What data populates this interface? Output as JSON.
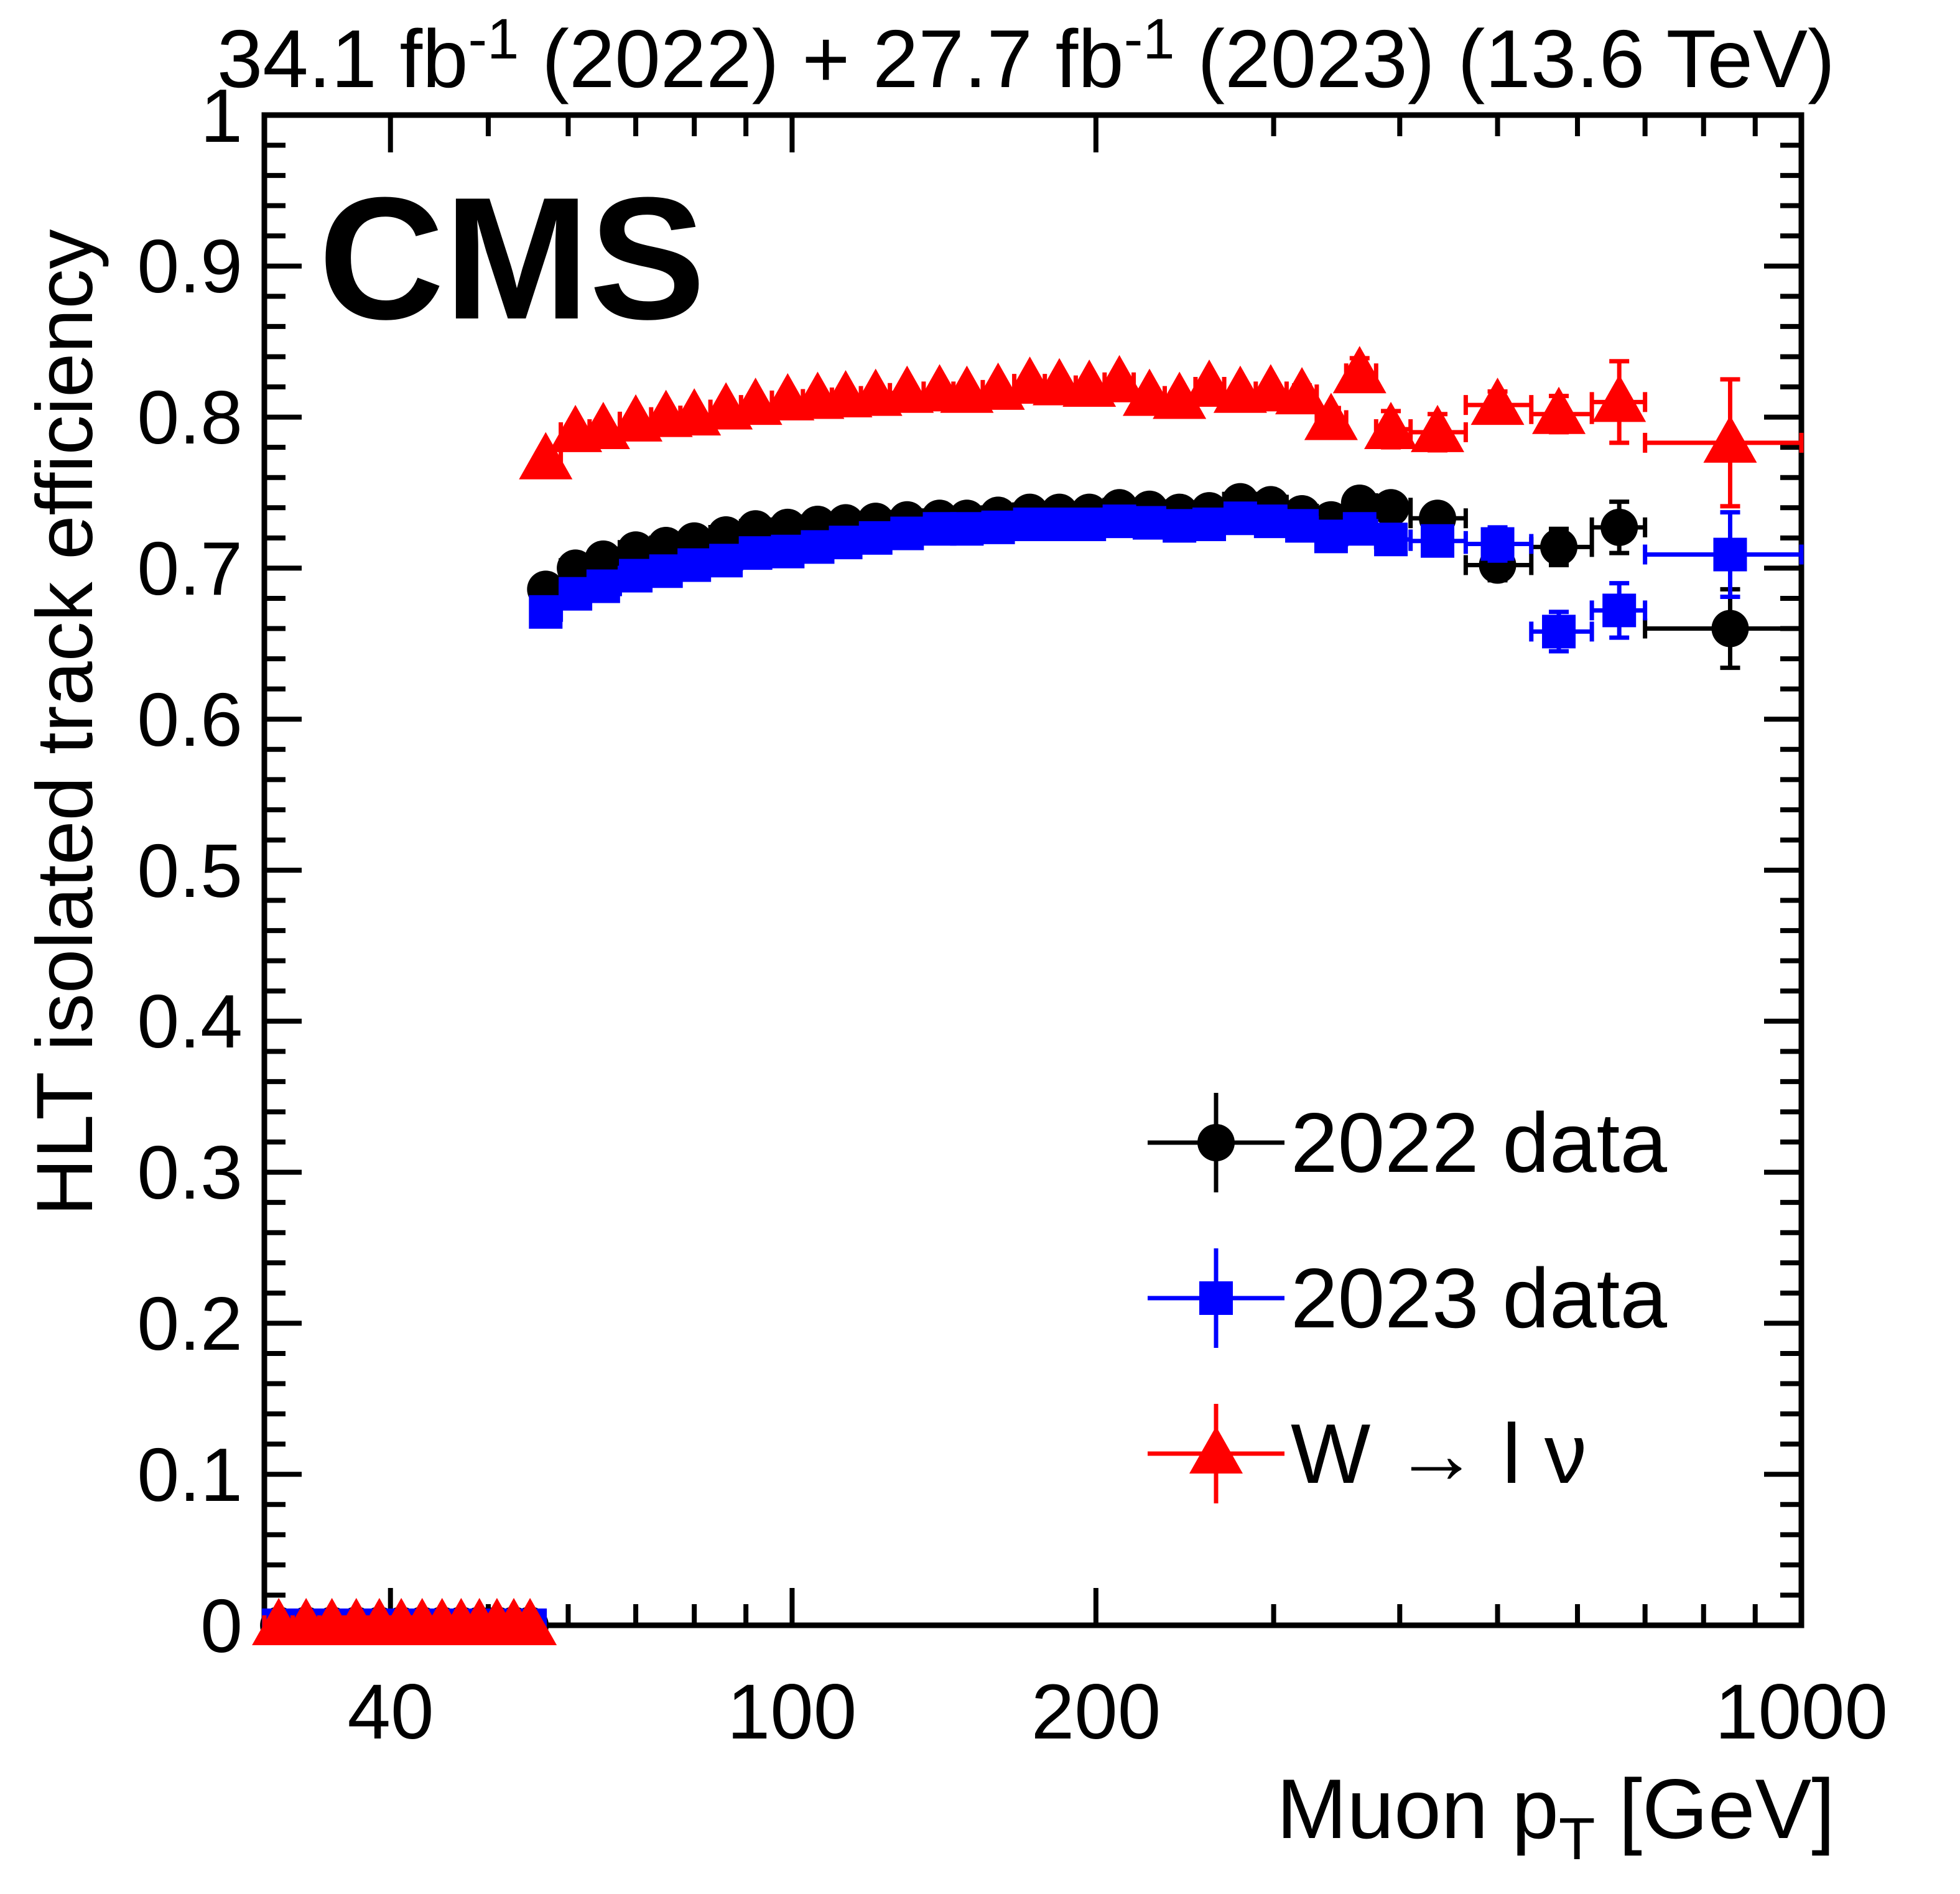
{
  "cms_label": "CMS",
  "chart_data": {
    "type": "scatter",
    "title": "34.1 fb-1 (2022) + 27.7 fb-1 (2023) (13.6 TeV)",
    "title_parts": {
      "p1": "34.1 fb",
      "sup1": "-1",
      "p2": " (2022) + 27.7 fb",
      "sup2": "-1",
      "p3": " (2023) (13.6 TeV)"
    },
    "xlabel": "Muon pT [GeV]",
    "xlabel_parts": {
      "main": "Muon p",
      "sub": "T",
      "unit": " [GeV]"
    },
    "ylabel": "HLT isolated track efficiency",
    "x_scale": "log",
    "xlim": [
      30,
      1000
    ],
    "ylim": [
      0,
      1
    ],
    "grid": false,
    "legend_position": "center-right",
    "x_tick_labels": [
      "40",
      "100",
      "200",
      "1000"
    ],
    "x_ticks_major": [
      40,
      100,
      200,
      1000
    ],
    "x_ticks_minor": [
      50,
      60,
      70,
      80,
      90,
      300,
      400,
      500,
      600,
      700,
      800,
      900
    ],
    "y_tick_labels": [
      "1",
      "0.9",
      "0.8",
      "0.7",
      "0.6",
      "0.5",
      "0.4",
      "0.3",
      "0.2",
      "0.1",
      "0"
    ],
    "y_major_step": 0.1,
    "y_minor_step": 0.02,
    "x": [
      31,
      33,
      35,
      37,
      39,
      41,
      43,
      45,
      47,
      49,
      51,
      53,
      55,
      57,
      61,
      65,
      70,
      75,
      80,
      86,
      92,
      99,
      106,
      113,
      121,
      130,
      140,
      149,
      160,
      172,
      184,
      197,
      211,
      226,
      242,
      259,
      278,
      298,
      320,
      342,
      365,
      392,
      436,
      500,
      575,
      660,
      850
    ],
    "bin_edges": [
      30,
      32,
      34,
      36,
      38,
      40,
      42,
      44,
      46,
      48,
      50,
      52,
      54,
      56,
      59,
      63,
      67.5,
      72.5,
      77.5,
      83,
      89,
      95.5,
      102.5,
      109.5,
      117,
      125,
      135,
      144.5,
      154.5,
      166,
      178,
      191,
      204,
      218,
      234,
      251,
      268,
      288,
      309,
      331,
      354,
      379,
      410,
      465,
      540,
      620,
      700,
      1000
    ],
    "series": [
      {
        "name": "2022 data",
        "marker": "circle",
        "color": "#000000",
        "y": [
          0,
          0,
          0,
          0,
          0,
          0,
          0,
          0,
          0,
          0,
          0,
          0,
          0,
          0.686,
          0.7,
          0.706,
          0.712,
          0.715,
          0.718,
          0.722,
          0.726,
          0.727,
          0.729,
          0.73,
          0.731,
          0.732,
          0.733,
          0.733,
          0.735,
          0.737,
          0.737,
          0.737,
          0.74,
          0.739,
          0.737,
          0.738,
          0.744,
          0.742,
          0.736,
          0.732,
          0.743,
          0.74,
          0.733,
          0.702,
          0.714,
          0.727,
          0.66
        ],
        "yerr": [
          0,
          0,
          0,
          0,
          0,
          0,
          0,
          0,
          0,
          0,
          0,
          0,
          0,
          0.003,
          0.003,
          0.003,
          0.003,
          0.003,
          0.003,
          0.003,
          0.003,
          0.003,
          0.003,
          0.003,
          0.003,
          0.003,
          0.003,
          0.003,
          0.003,
          0.003,
          0.003,
          0.003,
          0.003,
          0.003,
          0.004,
          0.004,
          0.004,
          0.004,
          0.005,
          0.005,
          0.006,
          0.007,
          0.008,
          0.01,
          0.012,
          0.017,
          0.026
        ]
      },
      {
        "name": "2023 data",
        "marker": "square",
        "color": "#0000ff",
        "y": [
          0,
          0,
          0,
          0,
          0,
          0,
          0,
          0,
          0,
          0,
          0,
          0,
          0,
          0.671,
          0.683,
          0.688,
          0.695,
          0.698,
          0.702,
          0.705,
          0.71,
          0.711,
          0.714,
          0.717,
          0.72,
          0.723,
          0.726,
          0.726,
          0.727,
          0.729,
          0.729,
          0.729,
          0.731,
          0.73,
          0.728,
          0.729,
          0.733,
          0.731,
          0.728,
          0.721,
          0.726,
          0.719,
          0.718,
          0.716,
          0.658,
          0.672,
          0.709
        ],
        "yerr": [
          0,
          0,
          0,
          0,
          0,
          0,
          0,
          0,
          0,
          0,
          0,
          0,
          0,
          0.003,
          0.003,
          0.003,
          0.003,
          0.003,
          0.003,
          0.003,
          0.003,
          0.003,
          0.003,
          0.003,
          0.003,
          0.003,
          0.003,
          0.003,
          0.003,
          0.003,
          0.003,
          0.003,
          0.003,
          0.003,
          0.004,
          0.004,
          0.004,
          0.004,
          0.005,
          0.005,
          0.006,
          0.008,
          0.009,
          0.011,
          0.013,
          0.018,
          0.028
        ]
      },
      {
        "name": "W → l ν",
        "marker": "triangle",
        "color": "#ff0000",
        "y": [
          0,
          0,
          0,
          0,
          0,
          0,
          0,
          0,
          0,
          0,
          0,
          0,
          0,
          0.772,
          0.79,
          0.792,
          0.797,
          0.8,
          0.801,
          0.805,
          0.808,
          0.811,
          0.812,
          0.813,
          0.814,
          0.816,
          0.817,
          0.816,
          0.818,
          0.822,
          0.821,
          0.82,
          0.823,
          0.814,
          0.812,
          0.82,
          0.816,
          0.817,
          0.815,
          0.798,
          0.829,
          0.792,
          0.79,
          0.808,
          0.802,
          0.81,
          0.783
        ],
        "yerr": [
          0,
          0,
          0,
          0,
          0,
          0,
          0,
          0,
          0,
          0,
          0,
          0,
          0,
          0.004,
          0.004,
          0.004,
          0.004,
          0.004,
          0.004,
          0.004,
          0.004,
          0.004,
          0.004,
          0.004,
          0.004,
          0.004,
          0.004,
          0.004,
          0.004,
          0.004,
          0.004,
          0.004,
          0.004,
          0.004,
          0.005,
          0.005,
          0.005,
          0.005,
          0.006,
          0.008,
          0.01,
          0.012,
          0.012,
          0.009,
          0.012,
          0.027,
          0.042
        ]
      }
    ]
  }
}
